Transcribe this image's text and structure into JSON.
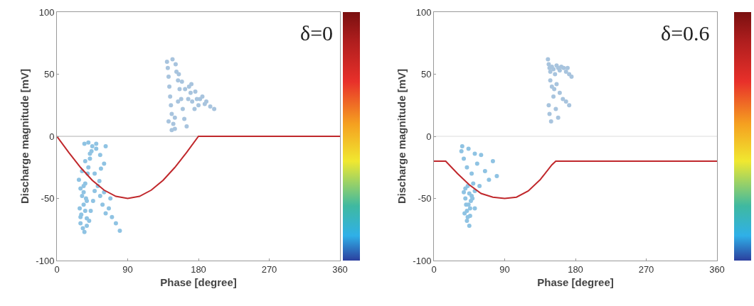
{
  "chart_data": [
    {
      "type": "scatter",
      "annotations": [
        "δ=0"
      ],
      "xlabel": "Phase [degree]",
      "ylabel": "Discharge magnitude [mV]",
      "xlim": [
        0,
        360
      ],
      "ylim": [
        -100,
        100
      ],
      "xticks": [
        0,
        90,
        180,
        270,
        360
      ],
      "yticks": [
        -100,
        -50,
        0,
        50,
        100
      ],
      "grid": false,
      "marker": "circle",
      "ref_lines": [
        {
          "axis": "y",
          "value": 0,
          "color": "#b0b0b0"
        }
      ],
      "series": [
        {
          "color": "#8fc3e3",
          "x": [
            28,
            30,
            32,
            34,
            36,
            38,
            30,
            33,
            35,
            37,
            29,
            31,
            34,
            36,
            39,
            40,
            42,
            44,
            62,
            56,
            50,
            38,
            41,
            43,
            46,
            48,
            52,
            55,
            58,
            62,
            66,
            70,
            75,
            80,
            35,
            40,
            45,
            50,
            55,
            60,
            32,
            36,
            42,
            48,
            54,
            60,
            68,
            30,
            34,
            38
          ],
          "values": [
            -35,
            -42,
            -48,
            -55,
            -60,
            -66,
            -70,
            -74,
            -77,
            -50,
            -58,
            -63,
            -45,
            -38,
            -30,
            -25,
            -18,
            -12,
            -8,
            -26,
            -6,
            -72,
            -68,
            -60,
            -52,
            -44,
            -40,
            -48,
            -55,
            -62,
            -58,
            -65,
            -70,
            -76,
            -6,
            -5,
            -8,
            -10,
            -15,
            -22,
            -28,
            -20,
            -14,
            -30,
            -36,
            -45,
            -50,
            -65,
            -40,
            -52
          ]
        },
        {
          "color": "#a8c4de",
          "x": [
            140,
            141,
            142,
            143,
            144,
            145,
            146,
            148,
            150,
            152,
            154,
            156,
            158,
            160,
            162,
            165,
            168,
            170,
            172,
            175,
            178,
            180,
            185,
            190,
            195,
            200,
            147,
            151,
            155,
            159,
            163,
            167,
            171,
            176,
            182,
            188,
            142,
            146,
            150,
            154
          ],
          "values": [
            60,
            55,
            48,
            40,
            32,
            25,
            18,
            10,
            6,
            52,
            45,
            38,
            30,
            22,
            14,
            8,
            40,
            35,
            28,
            22,
            30,
            25,
            32,
            28,
            24,
            22,
            62,
            58,
            50,
            44,
            38,
            30,
            42,
            36,
            30,
            26,
            12,
            5,
            15,
            28
          ]
        },
        {
          "type": "line",
          "color": "#c0282c",
          "marker": "none",
          "line_style": "solid",
          "x": [
            0,
            15,
            30,
            45,
            60,
            75,
            90,
            105,
            120,
            135,
            150,
            165,
            180,
            360
          ],
          "values": [
            0,
            -12.9,
            -25,
            -35.4,
            -43.3,
            -48.3,
            -50,
            -48.3,
            -43.3,
            -35.4,
            -25,
            -12.9,
            0,
            0
          ]
        }
      ]
    },
    {
      "type": "scatter",
      "annotations": [
        "δ=0.6"
      ],
      "xlabel": "Phase [degree]",
      "ylabel": "Discharge magnitude [mV]",
      "xlim": [
        0,
        360
      ],
      "ylim": [
        -100,
        100
      ],
      "xticks": [
        0,
        90,
        180,
        270,
        360
      ],
      "yticks": [
        -100,
        -50,
        0,
        50,
        100
      ],
      "grid": false,
      "marker": "circle",
      "ref_lines": [
        {
          "axis": "y",
          "value": 0,
          "color": "#dcdcdc"
        }
      ],
      "series": [
        {
          "color": "#8fc3e3",
          "x": [
            38,
            40,
            41,
            42,
            43,
            52,
            45,
            46,
            47,
            48,
            39,
            42,
            44,
            46,
            49,
            40,
            43,
            45,
            50,
            52,
            35,
            38,
            42,
            48,
            55,
            60,
            65,
            70,
            75,
            80,
            36,
            44,
            52,
            58
          ],
          "values": [
            -45,
            -50,
            -55,
            -60,
            -65,
            -58,
            -72,
            -58,
            -52,
            -48,
            -62,
            -68,
            -55,
            -64,
            -50,
            -42,
            -40,
            -46,
            -38,
            -44,
            -12,
            -18,
            -25,
            -30,
            -22,
            -15,
            -28,
            -35,
            -20,
            -32,
            -8,
            -10,
            -14,
            -40
          ]
        },
        {
          "color": "#a8c4de",
          "x": [
            145,
            146,
            147,
            148,
            150,
            152,
            154,
            156,
            158,
            160,
            162,
            165,
            168,
            170,
            172,
            175,
            148,
            150,
            153,
            156,
            160,
            164,
            168,
            172,
            146,
            147,
            149,
            152,
            155,
            158
          ],
          "values": [
            62,
            58,
            55,
            52,
            56,
            54,
            50,
            57,
            55,
            53,
            56,
            55,
            52,
            55,
            50,
            48,
            45,
            40,
            38,
            42,
            35,
            30,
            28,
            25,
            25,
            18,
            12,
            32,
            22,
            15
          ]
        },
        {
          "type": "line",
          "color": "#c0282c",
          "marker": "none",
          "line_style": "solid",
          "x": [
            0,
            15,
            30,
            45,
            60,
            75,
            90,
            105,
            120,
            135,
            150,
            155,
            360
          ],
          "values": [
            -20,
            -20,
            -30,
            -39,
            -46,
            -49,
            -50,
            -49,
            -44,
            -35,
            -23,
            -20,
            -20
          ]
        }
      ]
    }
  ]
}
